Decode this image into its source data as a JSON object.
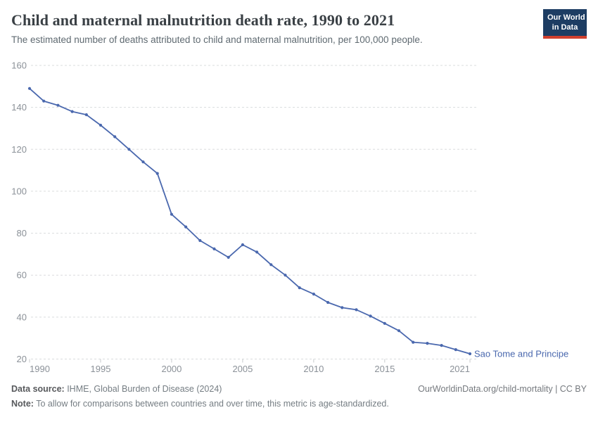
{
  "chart_data": {
    "type": "line",
    "title": "Child and maternal malnutrition death rate, 1990 to 2021",
    "subtitle": "The estimated number of deaths attributed to child and maternal malnutrition, per 100,000 people.",
    "x": [
      1990,
      1991,
      1992,
      1993,
      1994,
      1995,
      1996,
      1997,
      1998,
      1999,
      2000,
      2001,
      2002,
      2003,
      2004,
      2005,
      2006,
      2007,
      2008,
      2009,
      2010,
      2011,
      2012,
      2013,
      2014,
      2015,
      2016,
      2017,
      2018,
      2019,
      2020,
      2021
    ],
    "series": [
      {
        "name": "Sao Tome and Principe",
        "color": "#4a68ae",
        "values": [
          149,
          143,
          141,
          138,
          136.5,
          131.5,
          126,
          120,
          114,
          108.5,
          89,
          83,
          76.5,
          72.5,
          68.5,
          74.5,
          71,
          65,
          60,
          54,
          51,
          47,
          44.5,
          43.5,
          40.5,
          37,
          33.5,
          28,
          27.5,
          26.5,
          24.5,
          22.5
        ]
      }
    ],
    "xticks": [
      1990,
      1995,
      2000,
      2005,
      2010,
      2015,
      2021
    ],
    "yticks": [
      20,
      40,
      60,
      80,
      100,
      120,
      140,
      160
    ],
    "xlim": [
      1990,
      2021
    ],
    "ylim": [
      20,
      160
    ],
    "xlabel": "",
    "ylabel": "",
    "grid": "horizontal-dashed",
    "legend_position": "line-end-label"
  },
  "header": {
    "logo": {
      "line1": "Our World",
      "line2": "in Data"
    }
  },
  "footer": {
    "datasource_label": "Data source:",
    "datasource_value": " IHME, Global Burden of Disease (2024)",
    "link": "OurWorldinData.org/child-mortality | CC BY",
    "note_label": "Note:",
    "note_value": " To allow for comparisons between countries and over time, this metric is age-standardized."
  },
  "colors": {
    "grid": "#dadcdd",
    "tick_label": "#8b9198",
    "axis_tick": "#c8cbce",
    "logo_bg": "#1d3d63",
    "logo_accent": "#d0402e"
  }
}
